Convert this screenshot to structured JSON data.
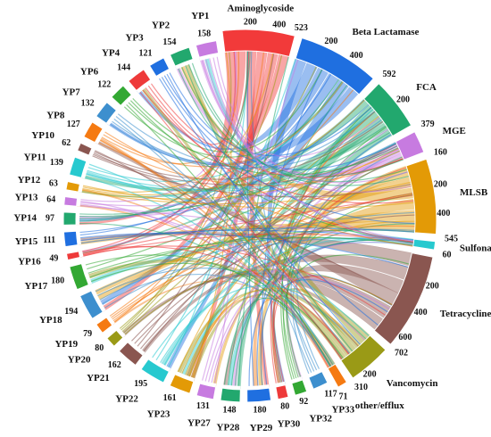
{
  "chart_data": {
    "type": "chord",
    "groups": [
      {
        "name": "Aminoglycoside",
        "total": "523",
        "value": 523,
        "ticks": [
          "200",
          "400"
        ],
        "color": "#f23a3a"
      },
      {
        "name": "Beta Lactamase",
        "total": "592",
        "value": 592,
        "ticks": [
          "200",
          "400"
        ],
        "color": "#1f6fe0"
      },
      {
        "name": "FCA",
        "total": "379",
        "value": 379,
        "ticks": [
          "200"
        ],
        "color": "#22a86e"
      },
      {
        "name": "MGE",
        "total": "160",
        "value": 160,
        "ticks": [],
        "color": "#c77be0"
      },
      {
        "name": "MLSB",
        "total": "545",
        "value": 545,
        "ticks": [
          "200",
          "400"
        ],
        "color": "#e39a06"
      },
      {
        "name": "Sulfonamide",
        "total": "60",
        "value": 60,
        "ticks": [],
        "color": "#27c9cf"
      },
      {
        "name": "Tetracycline",
        "total": "702",
        "value": 702,
        "ticks": [
          "200",
          "400",
          "600"
        ],
        "color": "#8a5650"
      },
      {
        "name": "Vancomycin",
        "total": "310",
        "value": 310,
        "ticks": [
          "200"
        ],
        "color": "#9a9a16"
      },
      {
        "name": "other/efflux",
        "total": "71",
        "value": 71,
        "ticks": [],
        "color": "#f57a12"
      },
      {
        "name": "YP33",
        "total": "117",
        "value": 117,
        "ticks": [],
        "color": "#3d8fce"
      },
      {
        "name": "YP32",
        "total": "92",
        "value": 92,
        "ticks": [],
        "color": "#33a833"
      },
      {
        "name": "YP30",
        "total": "80",
        "value": 80,
        "ticks": [],
        "color": "#ee3a3a"
      },
      {
        "name": "YP29",
        "total": "180",
        "value": 180,
        "ticks": [],
        "color": "#1f6fe0"
      },
      {
        "name": "YP28",
        "total": "148",
        "value": 148,
        "ticks": [],
        "color": "#22a86e"
      },
      {
        "name": "YP27",
        "total": "131",
        "value": 131,
        "ticks": [],
        "color": "#c77be0"
      },
      {
        "name": "YP23",
        "total": "161",
        "value": 161,
        "ticks": [],
        "color": "#e39a06"
      },
      {
        "name": "YP22",
        "total": "195",
        "value": 195,
        "ticks": [],
        "color": "#27c9cf"
      },
      {
        "name": "YP21",
        "total": "162",
        "value": 162,
        "ticks": [],
        "color": "#8a5650"
      },
      {
        "name": "YP20",
        "total": "80",
        "value": 80,
        "ticks": [],
        "color": "#9a9a16"
      },
      {
        "name": "YP19",
        "total": "79",
        "value": 79,
        "ticks": [],
        "color": "#f57a12"
      },
      {
        "name": "YP18",
        "total": "194",
        "value": 194,
        "ticks": [],
        "color": "#3d8fce"
      },
      {
        "name": "YP17",
        "total": "180",
        "value": 180,
        "ticks": [],
        "color": "#33a833"
      },
      {
        "name": "YP16",
        "total": "49",
        "value": 49,
        "ticks": [],
        "color": "#ee3a3a"
      },
      {
        "name": "YP15",
        "total": "111",
        "value": 111,
        "ticks": [],
        "color": "#1f6fe0"
      },
      {
        "name": "YP14",
        "total": "97",
        "value": 97,
        "ticks": [],
        "color": "#22a86e"
      },
      {
        "name": "YP13",
        "total": "64",
        "value": 64,
        "ticks": [],
        "color": "#c77be0"
      },
      {
        "name": "YP12",
        "total": "63",
        "value": 63,
        "ticks": [],
        "color": "#e39a06"
      },
      {
        "name": "YP11",
        "total": "139",
        "value": 139,
        "ticks": [],
        "color": "#27c9cf"
      },
      {
        "name": "YP10",
        "total": "62",
        "value": 62,
        "ticks": [],
        "color": "#8a5650"
      },
      {
        "name": "YP8",
        "total": "127",
        "value": 127,
        "ticks": [],
        "color": "#f57a12"
      },
      {
        "name": "YP7",
        "total": "132",
        "value": 132,
        "ticks": [],
        "color": "#3d8fce"
      },
      {
        "name": "YP6",
        "total": "122",
        "value": 122,
        "ticks": [],
        "color": "#33a833"
      },
      {
        "name": "YP4",
        "total": "144",
        "value": 144,
        "ticks": [],
        "color": "#ee3a3a"
      },
      {
        "name": "YP3",
        "total": "121",
        "value": 121,
        "ticks": [],
        "color": "#1f6fe0"
      },
      {
        "name": "YP2",
        "total": "154",
        "value": 154,
        "ticks": [],
        "color": "#22a86e"
      },
      {
        "name": "YP1",
        "total": "158",
        "value": 158,
        "ticks": [],
        "color": "#c77be0"
      }
    ],
    "links_from_groups": [
      "Aminoglycoside",
      "Beta Lactamase",
      "FCA",
      "MGE",
      "MLSB",
      "Sulfonamide",
      "Tetracycline",
      "Vancomycin",
      "other/efflux"
    ]
  }
}
